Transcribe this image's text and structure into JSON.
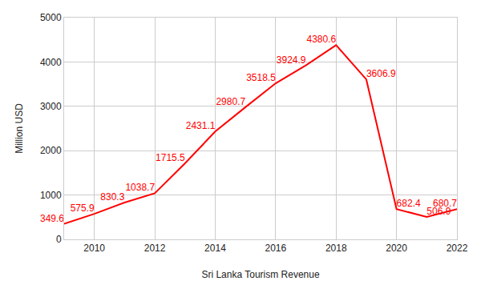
{
  "chart_data": {
    "type": "line",
    "x_label": "Sri Lanka Tourism Revenue",
    "y_label": "Million USD",
    "x": [
      2009,
      2010,
      2011,
      2012,
      2013,
      2014,
      2015,
      2016,
      2017,
      2018,
      2019,
      2020,
      2021,
      2022
    ],
    "values": [
      349.6,
      575.9,
      830.3,
      1038.7,
      1715.5,
      2431.1,
      2980.7,
      3518.5,
      3924.9,
      4380.6,
      3606.9,
      682.4,
      506.9,
      680.7
    ],
    "color": "#ff0000",
    "xlim": [
      2009,
      2022
    ],
    "xticks": [
      2010,
      2012,
      2014,
      2016,
      2018,
      2020,
      2022
    ],
    "ylim": [
      0,
      5000
    ],
    "yticks": [
      0,
      1000,
      2000,
      3000,
      4000,
      5000
    ],
    "grid": true,
    "data_labels": true
  }
}
